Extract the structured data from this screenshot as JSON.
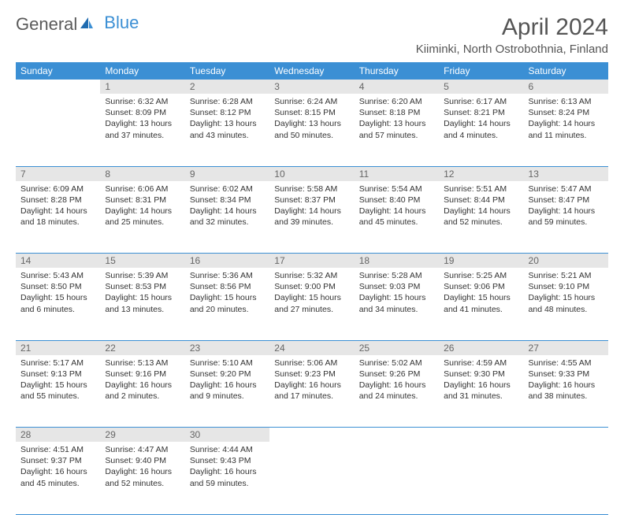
{
  "logo": {
    "text1": "General",
    "text2": "Blue"
  },
  "title": "April 2024",
  "location": "Kiiminki, North Ostrobothnia, Finland",
  "colors": {
    "header_bg": "#3b8fd4",
    "header_fg": "#ffffff",
    "daynum_bg": "#e6e6e6",
    "daynum_fg": "#666666",
    "body_fg": "#333333",
    "border": "#3b8fd4",
    "logo_gray": "#5a5a5a",
    "logo_blue": "#3b8fd4",
    "background": "#ffffff"
  },
  "fonts": {
    "title_size": 30,
    "location_size": 15,
    "weekday_size": 12,
    "daynum_size": 12,
    "body_size": 10.5,
    "logo_size": 22
  },
  "weekdays": [
    "Sunday",
    "Monday",
    "Tuesday",
    "Wednesday",
    "Thursday",
    "Friday",
    "Saturday"
  ],
  "weeks": [
    [
      null,
      {
        "n": "1",
        "sunrise": "6:32 AM",
        "sunset": "8:09 PM",
        "daylight": "13 hours and 37 minutes."
      },
      {
        "n": "2",
        "sunrise": "6:28 AM",
        "sunset": "8:12 PM",
        "daylight": "13 hours and 43 minutes."
      },
      {
        "n": "3",
        "sunrise": "6:24 AM",
        "sunset": "8:15 PM",
        "daylight": "13 hours and 50 minutes."
      },
      {
        "n": "4",
        "sunrise": "6:20 AM",
        "sunset": "8:18 PM",
        "daylight": "13 hours and 57 minutes."
      },
      {
        "n": "5",
        "sunrise": "6:17 AM",
        "sunset": "8:21 PM",
        "daylight": "14 hours and 4 minutes."
      },
      {
        "n": "6",
        "sunrise": "6:13 AM",
        "sunset": "8:24 PM",
        "daylight": "14 hours and 11 minutes."
      }
    ],
    [
      {
        "n": "7",
        "sunrise": "6:09 AM",
        "sunset": "8:28 PM",
        "daylight": "14 hours and 18 minutes."
      },
      {
        "n": "8",
        "sunrise": "6:06 AM",
        "sunset": "8:31 PM",
        "daylight": "14 hours and 25 minutes."
      },
      {
        "n": "9",
        "sunrise": "6:02 AM",
        "sunset": "8:34 PM",
        "daylight": "14 hours and 32 minutes."
      },
      {
        "n": "10",
        "sunrise": "5:58 AM",
        "sunset": "8:37 PM",
        "daylight": "14 hours and 39 minutes."
      },
      {
        "n": "11",
        "sunrise": "5:54 AM",
        "sunset": "8:40 PM",
        "daylight": "14 hours and 45 minutes."
      },
      {
        "n": "12",
        "sunrise": "5:51 AM",
        "sunset": "8:44 PM",
        "daylight": "14 hours and 52 minutes."
      },
      {
        "n": "13",
        "sunrise": "5:47 AM",
        "sunset": "8:47 PM",
        "daylight": "14 hours and 59 minutes."
      }
    ],
    [
      {
        "n": "14",
        "sunrise": "5:43 AM",
        "sunset": "8:50 PM",
        "daylight": "15 hours and 6 minutes."
      },
      {
        "n": "15",
        "sunrise": "5:39 AM",
        "sunset": "8:53 PM",
        "daylight": "15 hours and 13 minutes."
      },
      {
        "n": "16",
        "sunrise": "5:36 AM",
        "sunset": "8:56 PM",
        "daylight": "15 hours and 20 minutes."
      },
      {
        "n": "17",
        "sunrise": "5:32 AM",
        "sunset": "9:00 PM",
        "daylight": "15 hours and 27 minutes."
      },
      {
        "n": "18",
        "sunrise": "5:28 AM",
        "sunset": "9:03 PM",
        "daylight": "15 hours and 34 minutes."
      },
      {
        "n": "19",
        "sunrise": "5:25 AM",
        "sunset": "9:06 PM",
        "daylight": "15 hours and 41 minutes."
      },
      {
        "n": "20",
        "sunrise": "5:21 AM",
        "sunset": "9:10 PM",
        "daylight": "15 hours and 48 minutes."
      }
    ],
    [
      {
        "n": "21",
        "sunrise": "5:17 AM",
        "sunset": "9:13 PM",
        "daylight": "15 hours and 55 minutes."
      },
      {
        "n": "22",
        "sunrise": "5:13 AM",
        "sunset": "9:16 PM",
        "daylight": "16 hours and 2 minutes."
      },
      {
        "n": "23",
        "sunrise": "5:10 AM",
        "sunset": "9:20 PM",
        "daylight": "16 hours and 9 minutes."
      },
      {
        "n": "24",
        "sunrise": "5:06 AM",
        "sunset": "9:23 PM",
        "daylight": "16 hours and 17 minutes."
      },
      {
        "n": "25",
        "sunrise": "5:02 AM",
        "sunset": "9:26 PM",
        "daylight": "16 hours and 24 minutes."
      },
      {
        "n": "26",
        "sunrise": "4:59 AM",
        "sunset": "9:30 PM",
        "daylight": "16 hours and 31 minutes."
      },
      {
        "n": "27",
        "sunrise": "4:55 AM",
        "sunset": "9:33 PM",
        "daylight": "16 hours and 38 minutes."
      }
    ],
    [
      {
        "n": "28",
        "sunrise": "4:51 AM",
        "sunset": "9:37 PM",
        "daylight": "16 hours and 45 minutes."
      },
      {
        "n": "29",
        "sunrise": "4:47 AM",
        "sunset": "9:40 PM",
        "daylight": "16 hours and 52 minutes."
      },
      {
        "n": "30",
        "sunrise": "4:44 AM",
        "sunset": "9:43 PM",
        "daylight": "16 hours and 59 minutes."
      },
      null,
      null,
      null,
      null
    ]
  ],
  "labels": {
    "sunrise": "Sunrise:",
    "sunset": "Sunset:",
    "daylight": "Daylight:"
  }
}
